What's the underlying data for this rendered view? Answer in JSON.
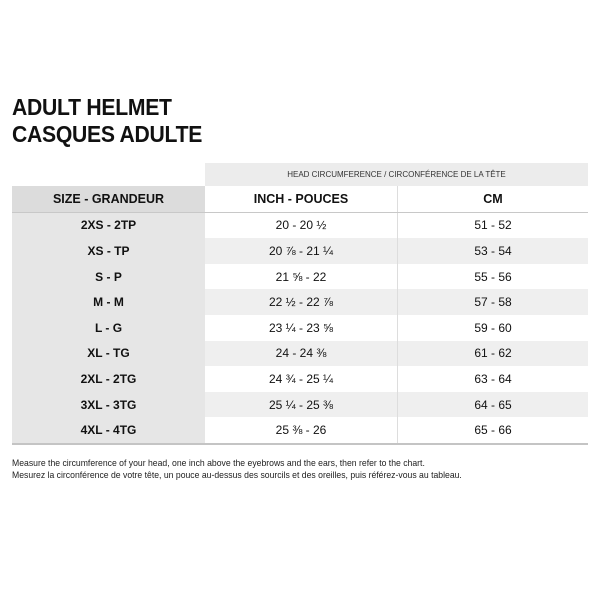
{
  "title": {
    "line1": "ADULT HELMET",
    "line2": "CASQUES ADULTE"
  },
  "table": {
    "group_header": "HEAD CIRCUMFERENCE / CIRCONFÉRENCE DE LA TÊTE",
    "columns": [
      "SIZE - GRANDEUR",
      "INCH - POUCES",
      "CM"
    ],
    "rows": [
      {
        "size": "2XS - 2TP",
        "inch": "20 - 20 ½",
        "cm": "51 - 52"
      },
      {
        "size": "XS - TP",
        "inch": "20 ⅞ - 21 ¼",
        "cm": "53 - 54"
      },
      {
        "size": "S - P",
        "inch": "21 ⅝ - 22",
        "cm": "55 - 56"
      },
      {
        "size": "M - M",
        "inch": "22 ½ - 22 ⅞",
        "cm": "57 - 58"
      },
      {
        "size": "L - G",
        "inch": "23 ¼ - 23 ⅝",
        "cm": "59 - 60"
      },
      {
        "size": "XL - TG",
        "inch": "24 - 24 ⅜",
        "cm": "61 - 62"
      },
      {
        "size": "2XL - 2TG",
        "inch": "24 ¾ - 25 ¼",
        "cm": "63 - 64"
      },
      {
        "size": "3XL - 3TG",
        "inch": "25 ¼ - 25 ⅜",
        "cm": "64 - 65"
      },
      {
        "size": "4XL - 4TG",
        "inch": "25 ⅜ - 26",
        "cm": "65 - 66"
      }
    ]
  },
  "notes": {
    "en": "Measure the circumference of your head, one inch above the eyebrows and the ears, then refer to the chart.",
    "fr": "Mesurez la circonférence de votre tête, un pouce au-dessus des sourcils et des oreilles, puis référez-vous au tableau."
  }
}
